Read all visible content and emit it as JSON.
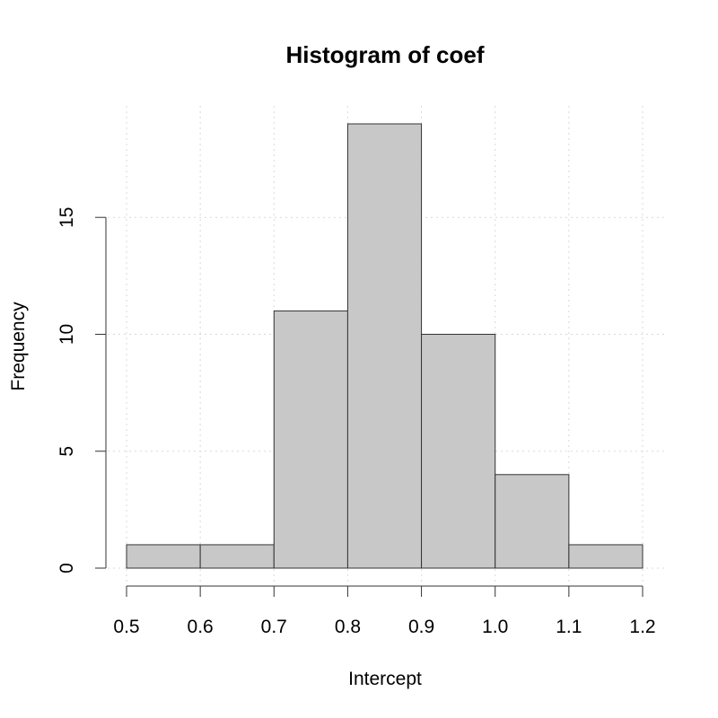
{
  "chart_data": {
    "type": "bar",
    "title": "Histogram of coef",
    "xlabel": "Intercept",
    "ylabel": "Frequency",
    "bins": [
      {
        "start": 0.5,
        "end": 0.6,
        "count": 1
      },
      {
        "start": 0.6,
        "end": 0.7,
        "count": 1
      },
      {
        "start": 0.7,
        "end": 0.8,
        "count": 11
      },
      {
        "start": 0.8,
        "end": 0.9,
        "count": 19
      },
      {
        "start": 0.9,
        "end": 1.0,
        "count": 10
      },
      {
        "start": 1.0,
        "end": 1.1,
        "count": 4
      },
      {
        "start": 1.1,
        "end": 1.2,
        "count": 1
      }
    ],
    "xlim": [
      0.5,
      1.2
    ],
    "ylim": [
      0,
      19
    ],
    "x_ticks": [
      "0.5",
      "0.6",
      "0.7",
      "0.8",
      "0.9",
      "1.0",
      "1.1",
      "1.2"
    ],
    "y_ticks": [
      "0",
      "5",
      "10",
      "15"
    ],
    "grid": true,
    "colors": {
      "bar_fill": "#c8c8c8",
      "bar_stroke": "#333333",
      "grid": "#d9d9d9"
    }
  }
}
